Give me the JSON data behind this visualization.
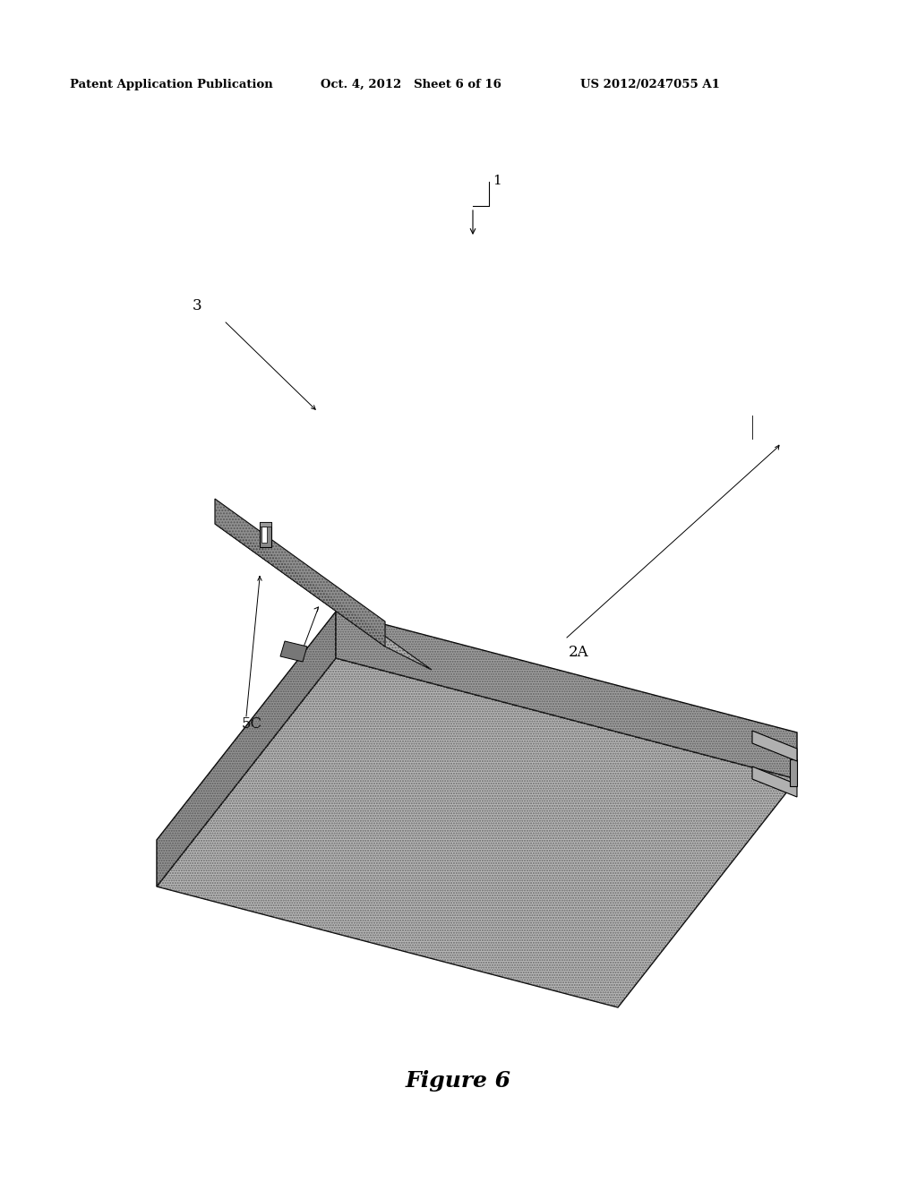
{
  "header_left": "Patent Application Publication",
  "header_mid": "Oct. 4, 2012   Sheet 6 of 16",
  "header_right": "US 2012/0247055 A1",
  "figure_label": "Figure 6",
  "background_color": "#ffffff",
  "label_1": "1",
  "label_2A": "2A",
  "label_3": "3",
  "label_5C": "5C",
  "slab_top_color": "#b8b8b8",
  "slab_left_color": "#949494",
  "slab_right_color": "#a0a0a0",
  "beam_top_color": "#b0b0b0",
  "beam_side_color": "#909090",
  "edge_color": "#000000"
}
